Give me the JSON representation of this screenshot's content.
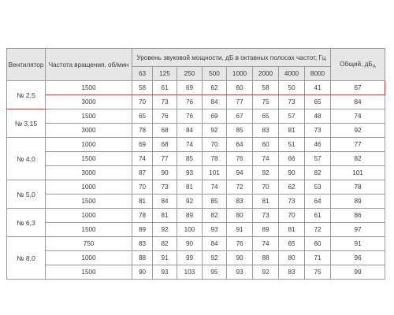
{
  "header": {
    "fan": "Вентилятор",
    "rpm": "Частота вращения, об/мин",
    "level": "Уровень звуковой мощности, дБ в октавных полосах частот, Гц",
    "total": "Общий, дБ",
    "total_sub": "А",
    "bands": [
      "63",
      "125",
      "250",
      "500",
      "1000",
      "2000",
      "4000",
      "8000"
    ]
  },
  "groups": [
    {
      "fan": "№ 2,5",
      "rows": [
        {
          "rpm": "1500",
          "values": [
            "58",
            "61",
            "69",
            "62",
            "60",
            "58",
            "50",
            "41"
          ],
          "total": "67"
        },
        {
          "rpm": "3000",
          "values": [
            "70",
            "73",
            "76",
            "84",
            "77",
            "75",
            "73",
            "65"
          ],
          "total": "84"
        }
      ]
    },
    {
      "fan": "№ 3,15",
      "rows": [
        {
          "rpm": "1500",
          "values": [
            "65",
            "76",
            "76",
            "69",
            "67",
            "65",
            "57",
            "48"
          ],
          "total": "74"
        },
        {
          "rpm": "3000",
          "values": [
            "78",
            "68",
            "84",
            "92",
            "85",
            "83",
            "81",
            "73"
          ],
          "total": "92"
        }
      ]
    },
    {
      "fan": "№ 4,0",
      "rows": [
        {
          "rpm": "1000",
          "values": [
            "69",
            "68",
            "74",
            "70",
            "64",
            "60",
            "51",
            "46"
          ],
          "total": "77"
        },
        {
          "rpm": "1500",
          "values": [
            "74",
            "77",
            "85",
            "78",
            "76",
            "74",
            "66",
            "57"
          ],
          "total": "82"
        },
        {
          "rpm": "3000",
          "values": [
            "87",
            "90",
            "93",
            "101",
            "94",
            "92",
            "90",
            "82"
          ],
          "total": "101"
        }
      ]
    },
    {
      "fan": "№ 5,0",
      "rows": [
        {
          "rpm": "1000",
          "values": [
            "70",
            "73",
            "81",
            "74",
            "72",
            "70",
            "62",
            "53"
          ],
          "total": "78"
        },
        {
          "rpm": "1500",
          "values": [
            "81",
            "84",
            "92",
            "85",
            "83",
            "81",
            "73",
            "64"
          ],
          "total": "89"
        }
      ]
    },
    {
      "fan": "№ 6,3",
      "rows": [
        {
          "rpm": "1000",
          "values": [
            "78",
            "81",
            "89",
            "82",
            "80",
            "73",
            "70",
            "61"
          ],
          "total": "86"
        },
        {
          "rpm": "1500",
          "values": [
            "89",
            "92",
            "100",
            "93",
            "91",
            "89",
            "81",
            "72"
          ],
          "total": "97"
        }
      ]
    },
    {
      "fan": "№ 8,0",
      "rows": [
        {
          "rpm": "750",
          "values": [
            "83",
            "82",
            "90",
            "84",
            "76",
            "74",
            "65",
            "60"
          ],
          "total": "91"
        },
        {
          "rpm": "1000",
          "values": [
            "88",
            "91",
            "99",
            "92",
            "90",
            "88",
            "80",
            "71"
          ],
          "total": "96"
        },
        {
          "rpm": "1500",
          "values": [
            "90",
            "93",
            "103",
            "95",
            "93",
            "92",
            "83",
            "75"
          ],
          "total": "99"
        }
      ]
    }
  ]
}
